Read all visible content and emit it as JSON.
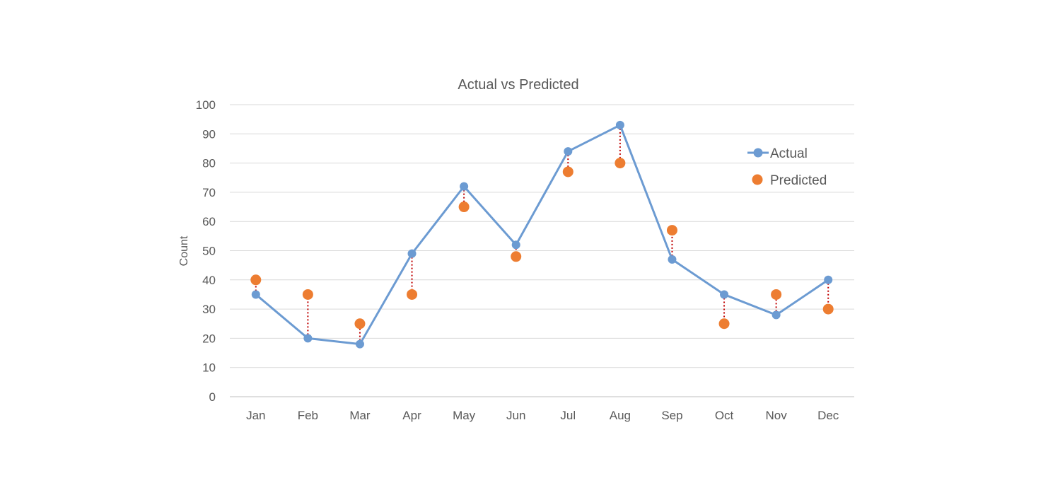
{
  "chart_data": {
    "type": "line",
    "title": "Actual vs Predicted",
    "xlabel": "",
    "ylabel": "Count",
    "ylim": [
      0,
      100
    ],
    "yticks": [
      0,
      10,
      20,
      30,
      40,
      50,
      60,
      70,
      80,
      90,
      100
    ],
    "grid": true,
    "legend_position": "top-right",
    "categories": [
      "Jan",
      "Feb",
      "Mar",
      "Apr",
      "May",
      "Jun",
      "Jul",
      "Aug",
      "Sep",
      "Oct",
      "Nov",
      "Dec"
    ],
    "series": [
      {
        "name": "Actual",
        "style": "line-with-markers",
        "color": "#6c9bd2",
        "values": [
          35,
          20,
          18,
          49,
          72,
          52,
          84,
          93,
          47,
          35,
          28,
          40
        ]
      },
      {
        "name": "Predicted",
        "style": "markers",
        "color": "#ed7d31",
        "values": [
          40,
          35,
          25,
          35,
          65,
          48,
          77,
          80,
          57,
          25,
          35,
          30
        ]
      }
    ],
    "error_lines": {
      "style": "dotted",
      "color": "#c00000"
    }
  }
}
